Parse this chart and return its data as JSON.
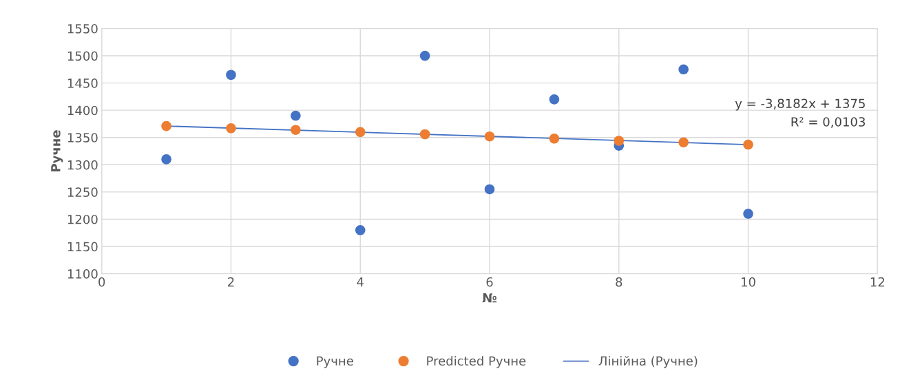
{
  "chart_data": {
    "type": "scatter",
    "xlabel": "№",
    "ylabel": "Ручне",
    "x": [
      1,
      2,
      3,
      4,
      5,
      6,
      7,
      8,
      9,
      10
    ],
    "series": [
      {
        "name": "Ручне",
        "color": "#4472c4",
        "values": [
          1310,
          1465,
          1390,
          1180,
          1500,
          1255,
          1420,
          1335,
          1475,
          1210
        ]
      },
      {
        "name": "Predicted Ручне",
        "color": "#ed7d31",
        "values": [
          1371,
          1367,
          1364,
          1360,
          1356,
          1352,
          1348,
          1344,
          1341,
          1337
        ]
      },
      {
        "name": "Лінійна (Ручне)",
        "type": "line",
        "marker": "none",
        "color": "#4472c4",
        "x": [
          1,
          10
        ],
        "values": [
          1371,
          1337
        ]
      }
    ],
    "annotations": [
      "y = -3,8182x + 1375",
      "R² = 0,0103"
    ],
    "xlim": [
      0,
      12
    ],
    "xticks": [
      0,
      2,
      4,
      6,
      8,
      10,
      12
    ],
    "ylim": [
      1100,
      1550
    ],
    "yticks": [
      1100,
      1150,
      1200,
      1250,
      1300,
      1350,
      1400,
      1450,
      1500,
      1550
    ],
    "grid": true,
    "legend": "bottom",
    "marker": "circle"
  }
}
